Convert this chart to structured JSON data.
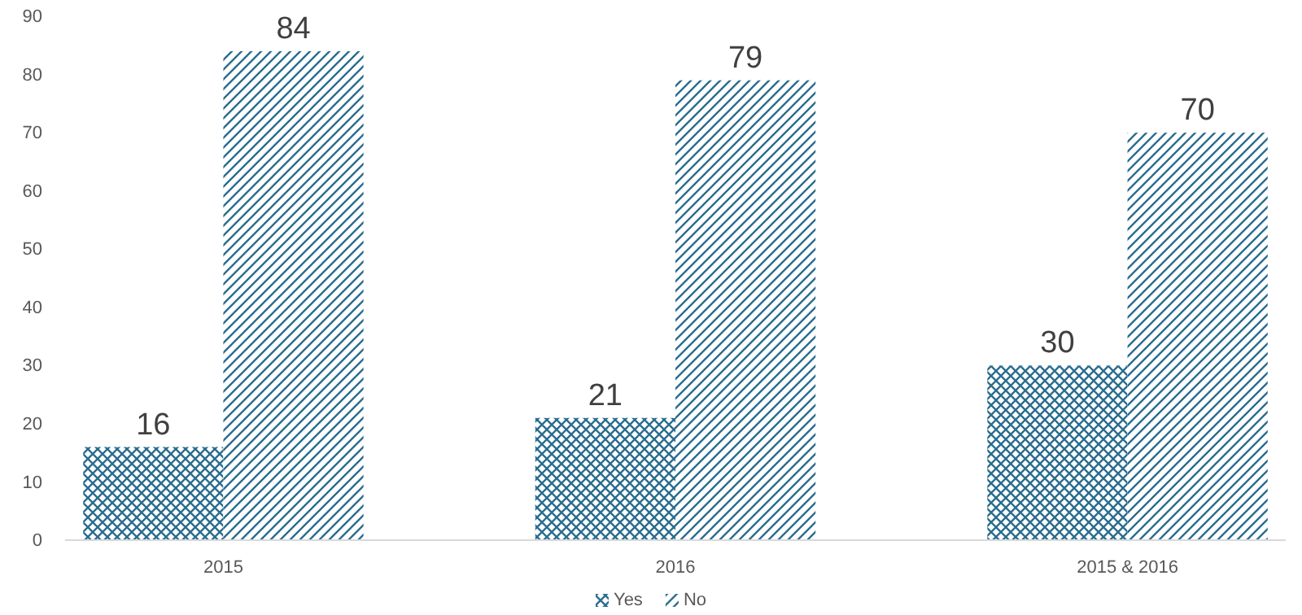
{
  "chart_data": {
    "type": "bar",
    "categories": [
      "2015",
      "2016",
      "2015 & 2016"
    ],
    "series": [
      {
        "name": "Yes",
        "color": "#2a6d8f",
        "values": [
          16,
          21,
          30
        ]
      },
      {
        "name": "No",
        "color": "#2a6d8f",
        "values": [
          84,
          79,
          70
        ]
      }
    ],
    "ylim": [
      0,
      90
    ],
    "yticks": [
      0,
      10,
      20,
      30,
      40,
      50,
      60,
      70,
      80,
      90
    ],
    "data_labels": true,
    "legend": "bottom",
    "grid": false
  }
}
